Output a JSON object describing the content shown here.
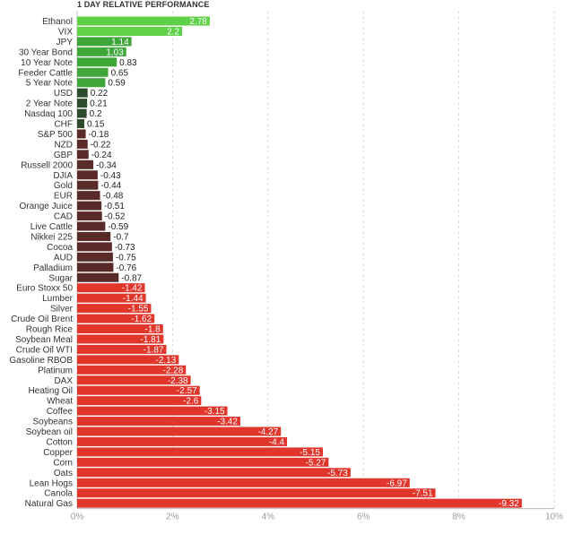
{
  "chart_data": {
    "type": "bar",
    "orientation": "horizontal",
    "title": "1 DAY RELATIVE PERFORMANCE",
    "xlabel": "",
    "ylabel": "",
    "xlim": [
      0,
      10
    ],
    "x_ticks": [
      "0%",
      "2%",
      "4%",
      "6%",
      "8%",
      "10%"
    ],
    "grid": true,
    "categories": [
      "Ethanol",
      "VIX",
      "JPY",
      "30 Year Bond",
      "10 Year Note",
      "Feeder Cattle",
      "5 Year Note",
      "USD",
      "2 Year Note",
      "Nasdaq 100",
      "CHF",
      "S&P 500",
      "NZD",
      "GBP",
      "Russell 2000",
      "DJIA",
      "Gold",
      "EUR",
      "Orange Juice",
      "CAD",
      "Live Cattle",
      "Nikkei 225",
      "Cocoa",
      "AUD",
      "Palladium",
      "Sugar",
      "Euro Stoxx 50",
      "Lumber",
      "Silver",
      "Crude Oil Brent",
      "Rough Rice",
      "Soybean Meal",
      "Crude Oil WTI",
      "Gasoline RBOB",
      "Platinum",
      "DAX",
      "Heating Oil",
      "Wheat",
      "Coffee",
      "Soybeans",
      "Soybean oil",
      "Cotton",
      "Copper",
      "Corn",
      "Oats",
      "Lean Hogs",
      "Canola",
      "Natural Gas"
    ],
    "values": [
      2.78,
      2.2,
      1.14,
      1.03,
      0.83,
      0.65,
      0.59,
      0.22,
      0.21,
      0.2,
      0.15,
      -0.18,
      -0.22,
      -0.24,
      -0.34,
      -0.43,
      -0.44,
      -0.48,
      -0.51,
      -0.52,
      -0.59,
      -0.7,
      -0.73,
      -0.75,
      -0.76,
      -0.87,
      -1.42,
      -1.44,
      -1.55,
      -1.62,
      -1.8,
      -1.81,
      -1.87,
      -2.13,
      -2.28,
      -2.38,
      -2.57,
      -2.6,
      -3.15,
      -3.42,
      -4.27,
      -4.4,
      -5.15,
      -5.27,
      -5.73,
      -6.97,
      -7.51,
      -9.32
    ],
    "value_labels": [
      "2.78",
      "2.2",
      "1.14",
      "1.03",
      "0.83",
      "0.65",
      "0.59",
      "0.22",
      "0.21",
      "0.2",
      "0.15",
      "-0.18",
      "-0.22",
      "-0.24",
      "-0.34",
      "-0.43",
      "-0.44",
      "-0.48",
      "-0.51",
      "-0.52",
      "-0.59",
      "-0.7",
      "-0.73",
      "-0.75",
      "-0.76",
      "-0.87",
      "-1.42",
      "-1.44",
      "-1.55",
      "-1.62",
      "-1.8",
      "-1.81",
      "-1.87",
      "-2.13",
      "-2.28",
      "-2.38",
      "-2.57",
      "-2.6",
      "-3.15",
      "-3.42",
      "-4.27",
      "-4.4",
      "-5.15",
      "-5.27",
      "-5.73",
      "-6.97",
      "-7.51",
      "-9.32"
    ],
    "bar_length": "absolute value",
    "colors": {
      "strong_positive": "#5ed147",
      "positive": "#3fa63a",
      "weak_positive": "#2d4a2c",
      "weak_negative": "#5a2a28",
      "negative": "#e0362c"
    }
  }
}
